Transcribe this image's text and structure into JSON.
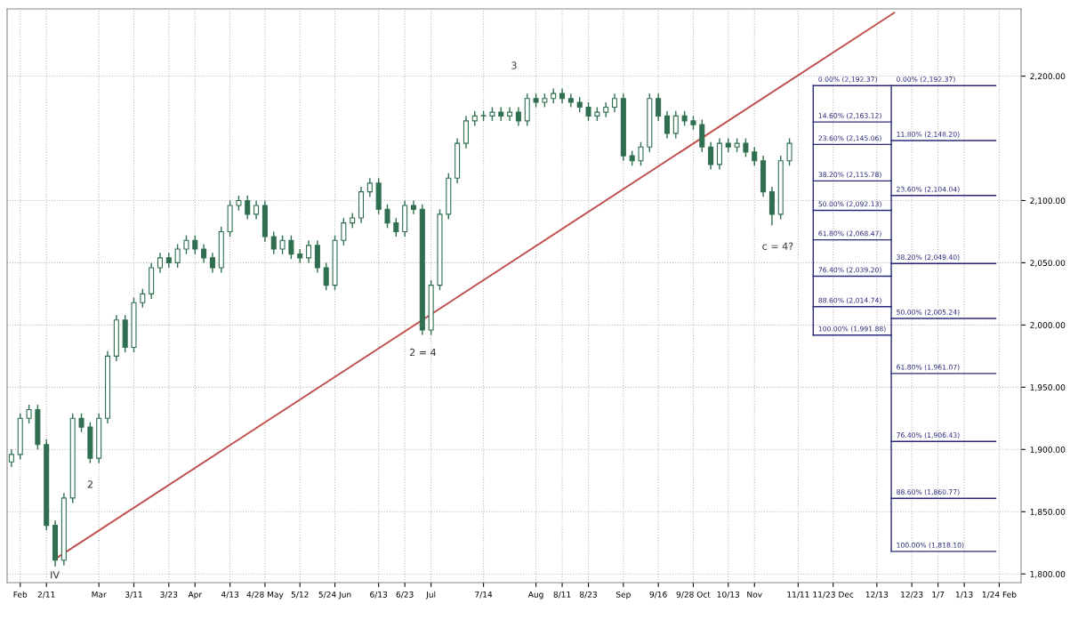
{
  "chart_data": {
    "type": "candlestick",
    "categories": [
      null,
      "Feb",
      null,
      null,
      "2/11",
      null,
      null,
      null,
      null,
      null,
      "Mar",
      null,
      null,
      null,
      "3/11",
      null,
      null,
      null,
      "3/23",
      null,
      null,
      "Apr",
      null,
      null,
      null,
      "4/13",
      null,
      null,
      null,
      "4/28 May",
      null,
      null,
      null,
      "5/12",
      null,
      null,
      null,
      "5/24 Jun",
      null,
      null,
      null,
      null,
      "6/13",
      null,
      null,
      "6/23",
      null,
      null,
      "Jul",
      null,
      null,
      null,
      null,
      null,
      "7/14",
      null,
      null,
      null,
      null,
      null,
      "Aug",
      null,
      null,
      "8/11",
      null,
      null,
      "8/23",
      null,
      null,
      null,
      "Sep",
      null,
      null,
      null,
      "9/16",
      null,
      null,
      null,
      "9/28 Oct",
      null,
      null,
      null,
      "10/13",
      null,
      null,
      "Nov",
      null,
      null,
      null,
      null,
      "11/11",
      null,
      null,
      null,
      "11/23 Dec",
      null,
      null,
      null,
      null,
      "12/13",
      null,
      null,
      null,
      "12/23",
      null,
      null,
      "1/7",
      null,
      null,
      "1/13",
      null,
      null,
      null,
      "1/24 Feb",
      null,
      null
    ],
    "series": [
      {
        "color": "#2f6f4f",
        "ohlc": [
          [
            1890,
            1900,
            1886,
            1896
          ],
          [
            1896,
            1929,
            1892,
            1925
          ],
          [
            1925,
            1936,
            1921,
            1932
          ],
          [
            1932,
            1936,
            1900,
            1904
          ],
          [
            1904,
            1908,
            1835,
            1839
          ],
          [
            1839,
            1843,
            1806,
            1811
          ],
          [
            1811,
            1865,
            1807,
            1861
          ],
          [
            1861,
            1929,
            1857,
            1925
          ],
          [
            1925,
            1929,
            1914,
            1918
          ],
          [
            1918,
            1922,
            1889,
            1893
          ],
          [
            1893,
            1929,
            1889,
            1925
          ],
          [
            1925,
            1979,
            1921,
            1975
          ],
          [
            1975,
            2008,
            1971,
            2004
          ],
          [
            2004,
            2008,
            1978,
            1982
          ],
          [
            1982,
            2022,
            1978,
            2018
          ],
          [
            2018,
            2029,
            2014,
            2025
          ],
          [
            2025,
            2050,
            2021,
            2046
          ],
          [
            2046,
            2058,
            2042,
            2054
          ],
          [
            2054,
            2058,
            2046,
            2050
          ],
          [
            2050,
            2065,
            2046,
            2061
          ],
          [
            2061,
            2072,
            2057,
            2068
          ],
          [
            2068,
            2072,
            2057,
            2061
          ],
          [
            2061,
            2065,
            2050,
            2054
          ],
          [
            2054,
            2058,
            2042,
            2046
          ],
          [
            2046,
            2079,
            2042,
            2075
          ],
          [
            2075,
            2100,
            2071,
            2096
          ],
          [
            2096,
            2104,
            2092,
            2100
          ],
          [
            2100,
            2104,
            2085,
            2089
          ],
          [
            2089,
            2100,
            2085,
            2096
          ],
          [
            2096,
            2100,
            2067,
            2071
          ],
          [
            2071,
            2075,
            2057,
            2061
          ],
          [
            2061,
            2072,
            2057,
            2068
          ],
          [
            2068,
            2072,
            2053,
            2057
          ],
          [
            2057,
            2061,
            2050,
            2054
          ],
          [
            2054,
            2068,
            2050,
            2064
          ],
          [
            2064,
            2068,
            2042,
            2046
          ],
          [
            2046,
            2050,
            2028,
            2032
          ],
          [
            2032,
            2072,
            2028,
            2068
          ],
          [
            2068,
            2086,
            2064,
            2082
          ],
          [
            2082,
            2090,
            2078,
            2086
          ],
          [
            2086,
            2111,
            2082,
            2107
          ],
          [
            2107,
            2118,
            2103,
            2114
          ],
          [
            2114,
            2118,
            2089,
            2093
          ],
          [
            2093,
            2097,
            2078,
            2082
          ],
          [
            2082,
            2086,
            2071,
            2075
          ],
          [
            2075,
            2100,
            2071,
            2096
          ],
          [
            2096,
            2100,
            2089,
            2093
          ],
          [
            2093,
            2097,
            1992,
            1996
          ],
          [
            1996,
            2036,
            1992,
            2032
          ],
          [
            2032,
            2093,
            2028,
            2089
          ],
          [
            2089,
            2122,
            2085,
            2118
          ],
          [
            2118,
            2150,
            2114,
            2146
          ],
          [
            2146,
            2168,
            2142,
            2164
          ],
          [
            2164,
            2172,
            2160,
            2168
          ],
          [
            2168,
            2172,
            2164,
            2168
          ],
          [
            2168,
            2175,
            2164,
            2171
          ],
          [
            2171,
            2175,
            2164,
            2168
          ],
          [
            2168,
            2175,
            2164,
            2171
          ],
          [
            2171,
            2175,
            2160,
            2164
          ],
          [
            2164,
            2186,
            2160,
            2182
          ],
          [
            2182,
            2186,
            2175,
            2179
          ],
          [
            2179,
            2186,
            2175,
            2182
          ],
          [
            2182,
            2190,
            2178,
            2186
          ],
          [
            2186,
            2190,
            2178,
            2182
          ],
          [
            2182,
            2186,
            2175,
            2179
          ],
          [
            2179,
            2183,
            2171,
            2175
          ],
          [
            2175,
            2179,
            2164,
            2168
          ],
          [
            2168,
            2175,
            2164,
            2171
          ],
          [
            2171,
            2179,
            2167,
            2175
          ],
          [
            2175,
            2186,
            2171,
            2182
          ],
          [
            2182,
            2186,
            2132,
            2136
          ],
          [
            2136,
            2140,
            2128,
            2132
          ],
          [
            2132,
            2147,
            2128,
            2143
          ],
          [
            2143,
            2186,
            2139,
            2182
          ],
          [
            2182,
            2186,
            2164,
            2168
          ],
          [
            2168,
            2172,
            2150,
            2154
          ],
          [
            2154,
            2172,
            2150,
            2168
          ],
          [
            2168,
            2172,
            2160,
            2164
          ],
          [
            2164,
            2168,
            2157,
            2161
          ],
          [
            2161,
            2165,
            2139,
            2143
          ],
          [
            2143,
            2147,
            2125,
            2129
          ],
          [
            2129,
            2150,
            2125,
            2146
          ],
          [
            2146,
            2150,
            2139,
            2143
          ],
          [
            2143,
            2150,
            2139,
            2146
          ],
          [
            2146,
            2150,
            2135,
            2139
          ],
          [
            2139,
            2143,
            2128,
            2132
          ],
          [
            2132,
            2136,
            2103,
            2107
          ],
          [
            2107,
            2111,
            2080,
            2089
          ],
          [
            2089,
            2136,
            2085,
            2132
          ],
          [
            2132,
            2150,
            2128,
            2146
          ],
          null,
          null,
          null,
          null,
          null,
          null,
          null,
          null,
          null,
          null,
          null,
          null,
          null,
          null,
          null,
          null,
          null,
          null,
          null,
          null,
          null,
          null,
          null,
          null,
          null,
          null
        ]
      },
      {
        "type": "line",
        "color": "#c0504d",
        "values": [
          null,
          null,
          null,
          null,
          null,
          1812,
          null,
          null,
          null,
          null,
          null,
          null,
          null,
          null,
          null,
          null,
          null,
          null,
          null,
          null,
          null,
          null,
          null,
          null,
          null,
          null,
          null,
          null,
          null,
          null,
          null,
          null,
          null,
          null,
          null,
          null,
          null,
          null,
          null,
          null,
          null,
          null,
          null,
          null,
          null,
          null,
          null,
          null,
          null,
          null,
          null,
          null,
          null,
          null,
          null,
          null,
          null,
          null,
          null,
          null,
          null,
          null,
          null,
          null,
          null,
          null,
          null,
          null,
          null,
          null,
          null,
          null,
          null,
          null,
          null,
          null,
          null,
          null,
          null,
          null,
          null,
          null,
          null,
          null,
          null,
          null,
          null,
          null,
          null,
          null,
          null,
          null,
          null,
          null,
          null,
          null,
          null,
          null,
          null,
          null,
          null,
          2251,
          null,
          null,
          null,
          null,
          null,
          null,
          null,
          null,
          null,
          null,
          null,
          null,
          null,
          null
        ]
      }
    ],
    "ylim": [
      1793,
      2254
    ],
    "yticks": [
      {
        "value": 1800,
        "label": "1,800.00"
      },
      {
        "value": 1850,
        "label": "1,850.00"
      },
      {
        "value": 1900,
        "label": "1,900.00"
      },
      {
        "value": 1950,
        "label": "1,950.00"
      },
      {
        "value": 2000,
        "label": "2,000.00"
      },
      {
        "value": 2050,
        "label": "2,050.00"
      },
      {
        "value": 2100,
        "label": "2,100.00"
      },
      {
        "value": 2200,
        "label": "2,200.00"
      }
    ],
    "grid": true,
    "annotations": [
      "IV",
      "2",
      "2 = 4",
      "3",
      "c = 4?"
    ],
    "ref_lines": [
      {
        "axis": "y",
        "value": 2192.37,
        "label": "0.00% (2,192.37)",
        "color": "#2a2a7a"
      },
      {
        "axis": "y",
        "value": 2163.12,
        "label": "14.60% (2,163.12)",
        "color": "#2a2a7a"
      },
      {
        "axis": "y",
        "value": 2145.06,
        "label": "23.60% (2,145.06)",
        "color": "#2a2a7a"
      },
      {
        "axis": "y",
        "value": 2115.78,
        "label": "38.20% (2,115.78)",
        "color": "#2a2a7a"
      },
      {
        "axis": "y",
        "value": 2092.13,
        "label": "50.00% (2,092.13)",
        "color": "#2a2a7a"
      },
      {
        "axis": "y",
        "value": 2068.47,
        "label": "61.80% (2,068.47)",
        "color": "#2a2a7a"
      },
      {
        "axis": "y",
        "value": 2039.2,
        "label": "76.40% (2,039.20)",
        "color": "#2a2a7a"
      },
      {
        "axis": "y",
        "value": 2014.74,
        "label": "88.60% (2,014.74)",
        "color": "#2a2a7a"
      },
      {
        "axis": "y",
        "value": 1991.88,
        "label": "100.00% (1,991.88)",
        "color": "#2a2a7a"
      },
      {
        "axis": "y",
        "value": 2148.2,
        "label": "11.80% (2,148.20)",
        "color": "#2a2a7a"
      },
      {
        "axis": "y",
        "value": 2104.04,
        "label": "23.60% (2,104.04)",
        "color": "#2a2a7a"
      },
      {
        "axis": "y",
        "value": 2049.4,
        "label": "38.20% (2,049.40)",
        "color": "#2a2a7a"
      },
      {
        "axis": "y",
        "value": 2005.24,
        "label": "50.00% (2,005.24)",
        "color": "#2a2a7a"
      },
      {
        "axis": "y",
        "value": 1961.07,
        "label": "61.80% (1,961.07)",
        "color": "#2a2a7a"
      },
      {
        "axis": "y",
        "value": 1906.43,
        "label": "76.40% (1,906.43)",
        "color": "#2a2a7a"
      },
      {
        "axis": "y",
        "value": 1860.77,
        "label": "88.60% (1,860.77)",
        "color": "#2a2a7a"
      },
      {
        "axis": "y",
        "value": 1818.1,
        "label": "100.00% (1,818.10)",
        "color": "#2a2a7a"
      }
    ]
  }
}
